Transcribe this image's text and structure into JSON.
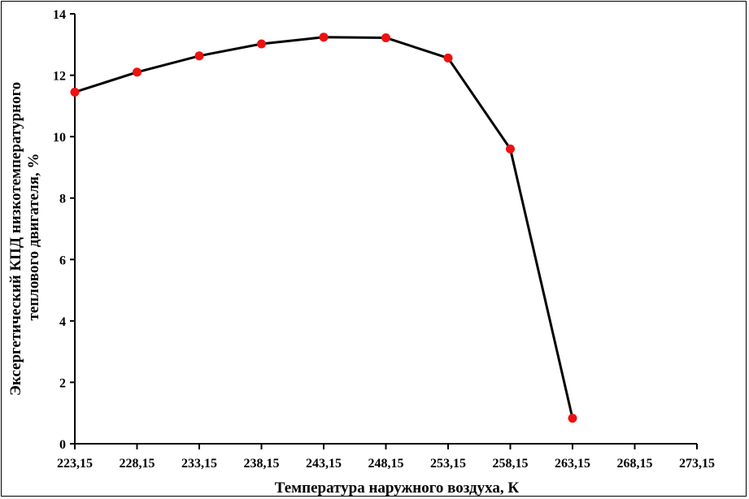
{
  "chart_data": {
    "type": "line",
    "title": "",
    "xlabel": "Температура наружного воздуха, К",
    "ylabel_lines": [
      "Эксергетический КПД низкотемпературного",
      "теплового двигателя, %"
    ],
    "x_tick_labels": [
      "223,15",
      "228,15",
      "233,15",
      "238,15",
      "243,15",
      "248,15",
      "253,15",
      "258,15",
      "263,15",
      "268,15",
      "273,15"
    ],
    "x_ticks": [
      223.15,
      228.15,
      233.15,
      238.15,
      243.15,
      248.15,
      253.15,
      258.15,
      263.15,
      268.15,
      273.15
    ],
    "xlim": [
      223.15,
      273.15
    ],
    "y_ticks": [
      0,
      2,
      4,
      6,
      8,
      10,
      12,
      14
    ],
    "ylim": [
      0,
      14
    ],
    "grid": false,
    "series": [
      {
        "x": [
          223.15,
          228.15,
          233.15,
          238.15,
          243.15,
          248.15,
          253.15,
          258.15,
          263.15
        ],
        "values": [
          11.45,
          12.1,
          12.63,
          13.02,
          13.24,
          13.22,
          12.56,
          9.6,
          0.83
        ],
        "line_color": "#000000",
        "marker_color": "#ee1111"
      }
    ]
  }
}
